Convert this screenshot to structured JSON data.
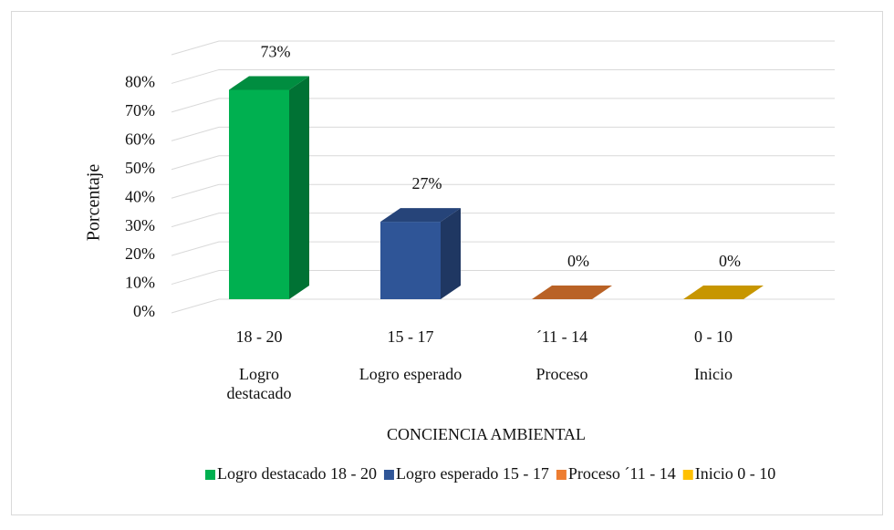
{
  "chart_data": {
    "type": "bar3d",
    "x_axis_label": "CONCIENCIA AMBIENTAL",
    "y_axis_label": "Porcentaje",
    "categories": [
      "18 - 20",
      "15 - 17",
      "´11 - 14",
      "0 - 10"
    ],
    "group_labels": [
      "Logro destacado",
      "Logro esperado",
      "Proceso",
      "Inicio"
    ],
    "values": [
      73,
      27,
      0,
      0
    ],
    "value_labels": [
      "73%",
      "27%",
      "0%",
      "0%"
    ],
    "colors": [
      "#00b050",
      "#2f5597",
      "#ed7d31",
      "#ffc000"
    ],
    "legend": [
      "Logro destacado 18 - 20",
      "Logro esperado 15 - 17",
      "Proceso ´11 - 14",
      "Inicio 0 - 10"
    ],
    "ylim": [
      0,
      90
    ],
    "yticks": [
      {
        "value": 0,
        "label": "0%"
      },
      {
        "value": 10,
        "label": "10%"
      },
      {
        "value": 20,
        "label": "20%"
      },
      {
        "value": 30,
        "label": "30%"
      },
      {
        "value": 40,
        "label": "40%"
      },
      {
        "value": 50,
        "label": "50%"
      },
      {
        "value": 60,
        "label": "60%"
      },
      {
        "value": 70,
        "label": "70%"
      },
      {
        "value": 80,
        "label": "80%"
      }
    ],
    "grid": true
  }
}
